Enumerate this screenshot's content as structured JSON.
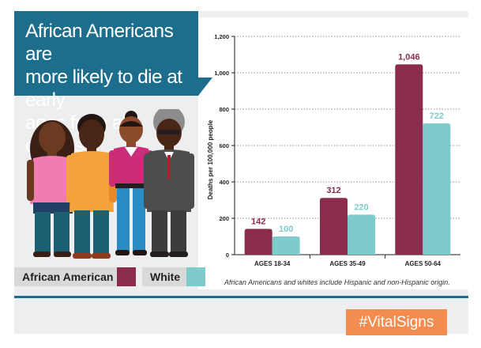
{
  "title": "African Americans are more likely to die at early ages from all causes.",
  "title_lines": [
    "African Americans are",
    "more likely to die at early",
    "ages from all causes."
  ],
  "legend": {
    "african_american": "African American",
    "white": "White"
  },
  "footnote": "African Americans and whites include Hispanic and non-Hispanic origin.",
  "hashtag": "#VitalSigns",
  "colors": {
    "african_american": "#8b2c4f",
    "white": "#7ecbcb",
    "brand_blue": "#1c6e8c",
    "hashtag_orange": "#f58c4f"
  },
  "chart_data": {
    "type": "bar",
    "categories": [
      "AGES 18-34",
      "AGES 35-49",
      "AGES 50-64"
    ],
    "series": [
      {
        "name": "African American",
        "values": [
          142,
          312,
          1046
        ],
        "labels": [
          "142",
          "312",
          "1,046"
        ]
      },
      {
        "name": "White",
        "values": [
          100,
          220,
          722
        ],
        "labels": [
          "100",
          "220",
          "722"
        ]
      }
    ],
    "ylabel": "Deaths per 100,000 people",
    "ylim": [
      0,
      1200
    ],
    "yticks": [
      0,
      200,
      400,
      600,
      800,
      1000,
      1200
    ],
    "ytick_labels": [
      "0",
      "200",
      "400",
      "600",
      "800",
      "1,000",
      "1,200"
    ],
    "grid": true,
    "legend_position": "bottom-left"
  }
}
